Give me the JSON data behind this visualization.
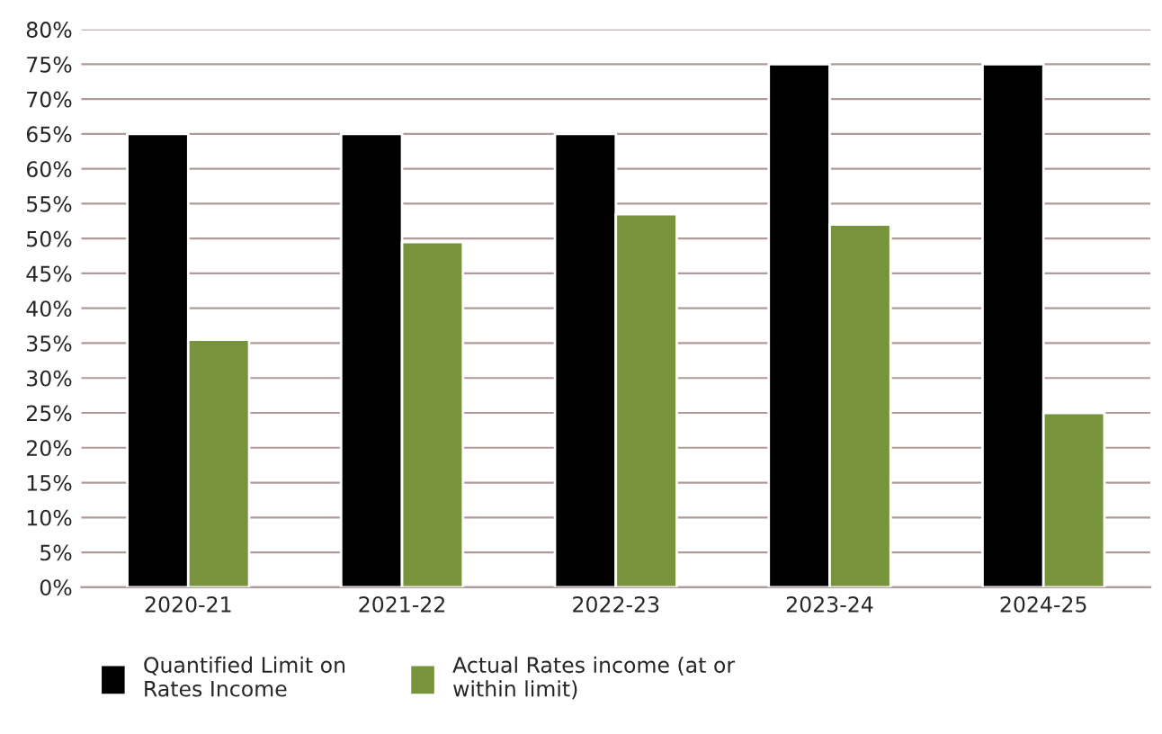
{
  "chart_data": {
    "type": "bar",
    "categories": [
      "2020-21",
      "2021-22",
      "2022-23",
      "2023-24",
      "2024-25"
    ],
    "series": [
      {
        "name": "Quantified Limit on\nRates Income",
        "color": "#000000",
        "values": [
          65,
          65,
          65,
          75,
          75
        ]
      },
      {
        "name": "Actual Rates income (at or\nwithin limit)",
        "color": "#77933c",
        "values": [
          35.5,
          49.5,
          53.5,
          52,
          25
        ]
      }
    ],
    "ylim": [
      0,
      80
    ],
    "yticks": [
      {
        "value": 0,
        "label": "0%"
      },
      {
        "value": 5,
        "label": "5%"
      },
      {
        "value": 10,
        "label": "10%"
      },
      {
        "value": 15,
        "label": "15%"
      },
      {
        "value": 20,
        "label": "20%"
      },
      {
        "value": 25,
        "label": "25%"
      },
      {
        "value": 30,
        "label": "30%"
      },
      {
        "value": 35,
        "label": "35%"
      },
      {
        "value": 40,
        "label": "40%"
      },
      {
        "value": 45,
        "label": "45%"
      },
      {
        "value": 50,
        "label": "50%"
      },
      {
        "value": 55,
        "label": "55%"
      },
      {
        "value": 60,
        "label": "60%"
      },
      {
        "value": 65,
        "label": "65%"
      },
      {
        "value": 70,
        "label": "70%"
      },
      {
        "value": 75,
        "label": "75%"
      },
      {
        "value": 80,
        "label": "80%"
      }
    ],
    "grid": "y",
    "legend": "bottom left"
  }
}
